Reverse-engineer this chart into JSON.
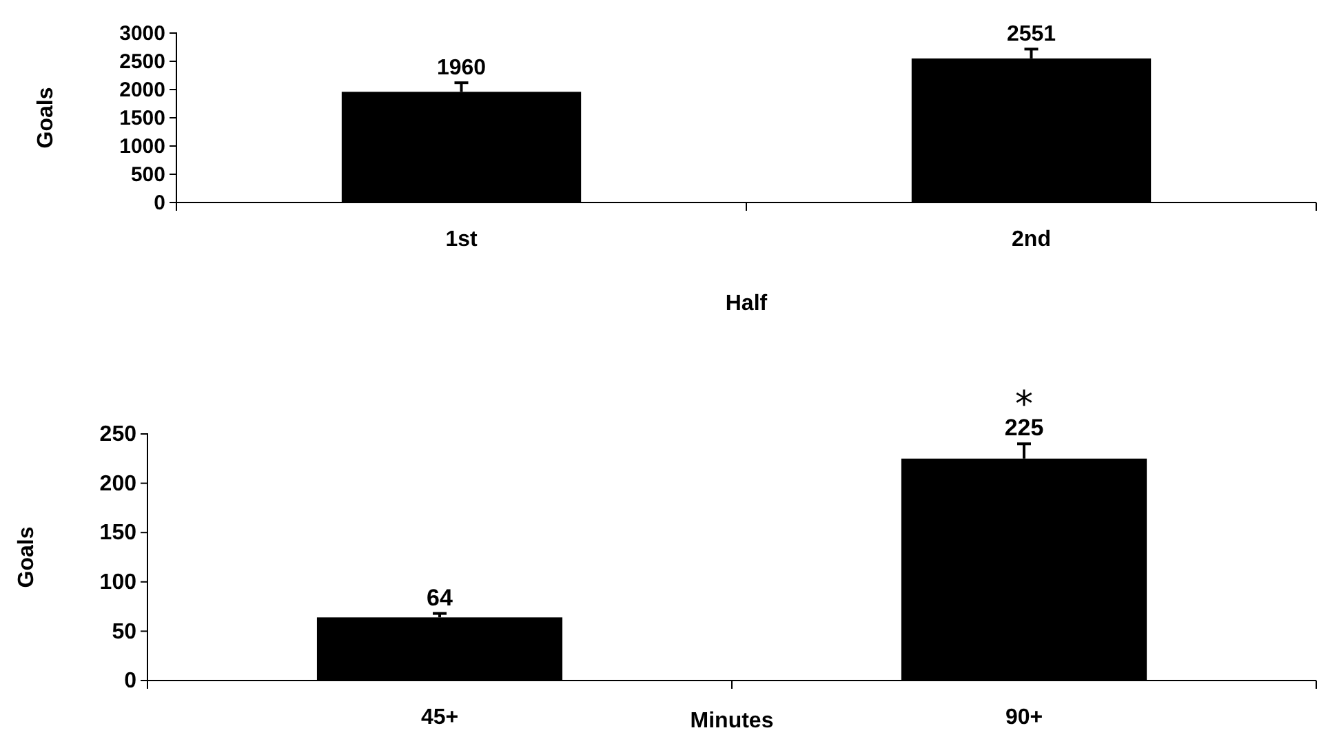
{
  "chart_data": [
    {
      "type": "bar",
      "categories": [
        "1st",
        "2nd"
      ],
      "values": [
        1960,
        2551
      ],
      "errors": [
        160,
        165
      ],
      "color": "#000000",
      "ylim": [
        0,
        3000
      ],
      "yticks": [
        0,
        500,
        1000,
        1500,
        2000,
        2500,
        3000
      ],
      "xlabel": "Half",
      "ylabel": "Goals",
      "data_labels": true,
      "grid": false
    },
    {
      "type": "bar",
      "categories": [
        "45+",
        "90+"
      ],
      "values": [
        64,
        225
      ],
      "errors": [
        4,
        15
      ],
      "color": "#000000",
      "ylim": [
        0,
        250
      ],
      "yticks": [
        0,
        50,
        100,
        150,
        200,
        250
      ],
      "xlabel": "Minutes",
      "ylabel": "Goals",
      "data_labels": true,
      "grid": false,
      "annotations": [
        "*"
      ]
    }
  ]
}
